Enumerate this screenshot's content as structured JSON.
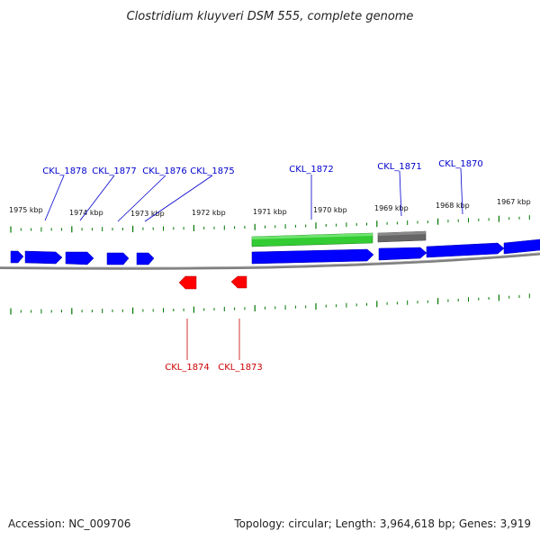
{
  "title": "Clostridium kluyveri DSM 555, complete genome",
  "accession": "Accession: NC_009706",
  "topology": "Topology: circular; Length: 3,964,618 bp; Genes: 3,919",
  "colors": {
    "forward_gene": "#0000ff",
    "reverse_gene": "#ff0000",
    "rna_gene": "#33cc33",
    "other_feature": "#666666",
    "backbone": "#7f7f7f",
    "tick": "#007700",
    "forward_label": "#0000cc",
    "reverse_label": "#cc0000"
  },
  "kbp_labels": [
    "1975 kbp",
    "1974 kbp",
    "1973 kbp",
    "1972 kbp",
    "1971 kbp",
    "1970 kbp",
    "1969 kbp",
    "1968 kbp",
    "1967 kbp"
  ],
  "forward_gene_labels": [
    "CKL_1878",
    "CKL_1877",
    "CKL_1876",
    "CKL_1875",
    "CKL_1872",
    "CKL_1871",
    "CKL_1870"
  ],
  "reverse_gene_labels": [
    "CKL_1874",
    "CKL_1873"
  ]
}
